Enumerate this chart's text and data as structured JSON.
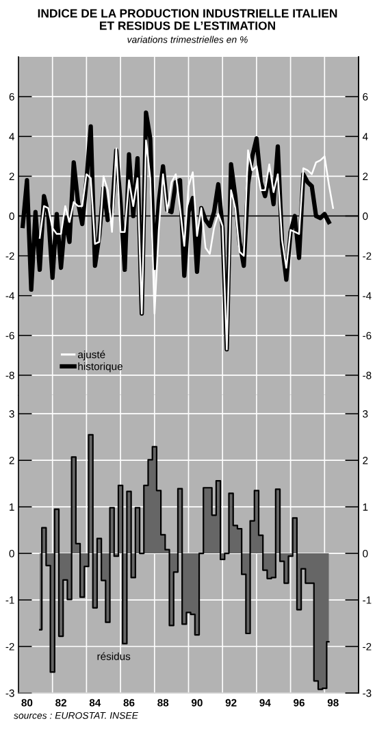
{
  "chart_data": [
    {
      "type": "line",
      "title": "INDICE DE LA PRODUCTION INDUSTRIELLE ITALIEN\nET RESIDUS DE L’ESTIMATION",
      "subtitle": "variations trimestrielles en %",
      "xlim": [
        79.5,
        99.5
      ],
      "xticks": [
        80,
        {
          "value": 81.5,
          "label": null
        },
        82,
        {
          "value": 83.5,
          "label": null
        },
        84,
        {
          "value": 85.5,
          "label": null
        },
        86,
        {
          "value": 87.5,
          "label": null
        },
        88,
        {
          "value": 89.5,
          "label": null
        },
        90,
        {
          "value": 91.5,
          "label": null
        },
        92,
        {
          "value": 93.5,
          "label": null
        },
        94,
        {
          "value": 95.5,
          "label": null
        },
        96,
        {
          "value": 97.5,
          "label": null
        },
        98
      ],
      "ylim": [
        -9,
        8
      ],
      "yticks": [
        -8,
        -6,
        -4,
        -2,
        0,
        2,
        4,
        6
      ],
      "y2lim": [
        -9,
        8
      ],
      "y2ticks": [
        -8,
        -6,
        -4,
        -2,
        0,
        2,
        4,
        6
      ],
      "grid": true,
      "legend": "bottom left",
      "tick_labels": "y",
      "ref_lines": [
        {
          "axis": "y",
          "value": 0,
          "color": "#000000"
        }
      ],
      "series": [
        {
          "name": "ajusté",
          "color": "#ffffff",
          "x": [
            80.75,
            81,
            81.25,
            81.5,
            81.75,
            82,
            82.25,
            82.5,
            82.75,
            83,
            83.25,
            83.5,
            83.75,
            84,
            84.25,
            84.5,
            84.75,
            85,
            85.25,
            85.5,
            85.75,
            86,
            86.25,
            86.5,
            86.75,
            87,
            87.25,
            87.5,
            87.75,
            88,
            88.25,
            88.5,
            88.75,
            89,
            89.25,
            89.5,
            89.75,
            90,
            90.25,
            90.5,
            90.75,
            91,
            91.25,
            91.5,
            91.75,
            92,
            92.25,
            92.5,
            92.75,
            93,
            93.25,
            93.5,
            93.75,
            94,
            94.25,
            94.5,
            94.75,
            95,
            95.25,
            95.5,
            95.75,
            96,
            96.25,
            96.5,
            96.75,
            97,
            97.25,
            97.5,
            97.75,
            98
          ],
          "values": [
            -1.1,
            0.5,
            0.4,
            -0.6,
            -0.9,
            -0.9,
            0.5,
            -0.3,
            0.7,
            0.5,
            0.5,
            2.1,
            1.9,
            -1.4,
            -1.3,
            2.0,
            1.3,
            -0.8,
            3.4,
            -0.8,
            -0.8,
            1.8,
            0.5,
            1.9,
            -4.9,
            3.8,
            1.9,
            -4.9,
            -0.7,
            2.1,
            0.2,
            1.7,
            2.1,
            0.4,
            -1.5,
            1.5,
            2.2,
            -1.0,
            0.4,
            -1.6,
            -1.9,
            -0.6,
            0.1,
            -0.5,
            -6.7,
            1.3,
            0.4,
            -1.8,
            -2.0,
            3.3,
            2.3,
            2.5,
            1.3,
            1.3,
            2.6,
            1.2,
            2.1,
            -1.2,
            -2.6,
            -0.7,
            -0.8,
            -0.9,
            2.4,
            2.3,
            2.1,
            2.7,
            2.8,
            3.0,
            1.6,
            0.4
          ]
        },
        {
          "name": "historique",
          "color": "#000000",
          "x": [
            79.75,
            80,
            80.25,
            80.5,
            80.75,
            81,
            81.25,
            81.5,
            81.75,
            82,
            82.25,
            82.5,
            82.75,
            83,
            83.25,
            83.5,
            83.75,
            84,
            84.25,
            84.5,
            84.75,
            85,
            85.25,
            85.5,
            85.75,
            86,
            86.25,
            86.5,
            86.75,
            87,
            87.25,
            87.5,
            87.75,
            88,
            88.25,
            88.5,
            88.75,
            89,
            89.25,
            89.5,
            89.75,
            90,
            90.25,
            90.5,
            90.75,
            91,
            91.25,
            91.5,
            91.75,
            92,
            92.25,
            92.5,
            92.75,
            93,
            93.25,
            93.5,
            93.75,
            94,
            94.25,
            94.5,
            94.75,
            95,
            95.25,
            95.5,
            95.75,
            96,
            96.25,
            96.5,
            96.75,
            97,
            97.25,
            97.5,
            97.75
          ],
          "values": [
            -0.5,
            1.8,
            -3.7,
            0.2,
            -2.7,
            1.0,
            0.1,
            -3.1,
            0.1,
            -2.6,
            -0.1,
            -1.3,
            2.7,
            0.7,
            -0.4,
            1.8,
            4.5,
            -2.5,
            -1.0,
            1.4,
            -0.2,
            0.2,
            3.3,
            0.7,
            -2.7,
            3.1,
            0.0,
            2.9,
            -4.9,
            5.2,
            3.9,
            -2.6,
            0.7,
            2.5,
            0.3,
            0.2,
            1.7,
            1.8,
            -3.0,
            0.2,
            0.9,
            -2.8,
            0.4,
            -0.2,
            -0.5,
            0.2,
            1.6,
            -0.6,
            -6.7,
            2.6,
            1.0,
            -1.3,
            -2.5,
            1.6,
            3.0,
            3.9,
            1.7,
            1.0,
            2.1,
            0.6,
            3.5,
            -1.4,
            -3.2,
            -0.8,
            0.0,
            -2.1,
            2.1,
            1.7,
            1.5,
            0.0,
            -0.1,
            0.1,
            -0.3
          ]
        }
      ]
    },
    {
      "type": "area",
      "xlim": [
        79.5,
        99.5
      ],
      "xticks": [
        80,
        {
          "value": 81.5,
          "label": null
        },
        82,
        {
          "value": 83.5,
          "label": null
        },
        84,
        {
          "value": 85.5,
          "label": null
        },
        86,
        {
          "value": 87.5,
          "label": null
        },
        88,
        {
          "value": 89.5,
          "label": null
        },
        90,
        {
          "value": 91.5,
          "label": null
        },
        92,
        {
          "value": 93.5,
          "label": null
        },
        94,
        {
          "value": 95.5,
          "label": null
        },
        96,
        {
          "value": 97.5,
          "label": null
        },
        98
      ],
      "ylim": [
        -3,
        3.4
      ],
      "yticks": [
        -3,
        -2,
        -1,
        0,
        1,
        2,
        3
      ],
      "y2lim": [
        -3,
        3.4
      ],
      "y2ticks": [
        -3,
        -2,
        -1,
        0,
        1,
        2,
        3
      ],
      "grid": true,
      "annotations": [
        "sources : EUROSTAT. INSEE"
      ],
      "series": [
        {
          "name": "résidus",
          "color": "#666666",
          "x": [
            80.75,
            81,
            81.25,
            81.5,
            81.75,
            82,
            82.25,
            82.5,
            82.75,
            83,
            83.25,
            83.5,
            83.75,
            84,
            84.25,
            84.5,
            84.75,
            85,
            85.25,
            85.5,
            85.75,
            86,
            86.25,
            86.5,
            86.75,
            87,
            87.25,
            87.5,
            87.75,
            88,
            88.25,
            88.5,
            88.75,
            89,
            89.25,
            89.5,
            89.75,
            90,
            90.25,
            90.5,
            90.75,
            91,
            91.25,
            91.5,
            91.75,
            92,
            92.25,
            92.5,
            92.75,
            93,
            93.25,
            93.5,
            93.75,
            94,
            94.25,
            94.5,
            94.75,
            95,
            95.25,
            95.5,
            95.75,
            96,
            96.25,
            96.5,
            96.75,
            97,
            97.25,
            97.5,
            97.75
          ],
          "values": [
            -1.64,
            0.55,
            -0.26,
            -2.55,
            0.95,
            -1.78,
            -0.57,
            -0.99,
            2.07,
            0.21,
            -0.94,
            -0.28,
            2.55,
            -1.17,
            0.32,
            -0.58,
            -1.48,
            0.98,
            -0.06,
            1.46,
            -1.94,
            1.33,
            -0.52,
            0.98,
            0.0,
            1.46,
            2.01,
            2.29,
            1.35,
            0.4,
            0.08,
            -1.55,
            -0.4,
            1.39,
            -1.52,
            -1.27,
            -1.31,
            -1.75,
            0.0,
            1.41,
            1.41,
            0.82,
            1.56,
            -0.13,
            0.0,
            1.29,
            0.6,
            0.53,
            -0.45,
            -1.72,
            0.7,
            1.35,
            0.39,
            -0.36,
            -0.54,
            -0.52,
            1.38,
            -0.17,
            -0.64,
            -0.06,
            0.76,
            -1.21,
            -0.33,
            -0.64,
            -0.64,
            -2.74,
            -2.92,
            -2.9,
            -1.9
          ]
        }
      ]
    }
  ]
}
